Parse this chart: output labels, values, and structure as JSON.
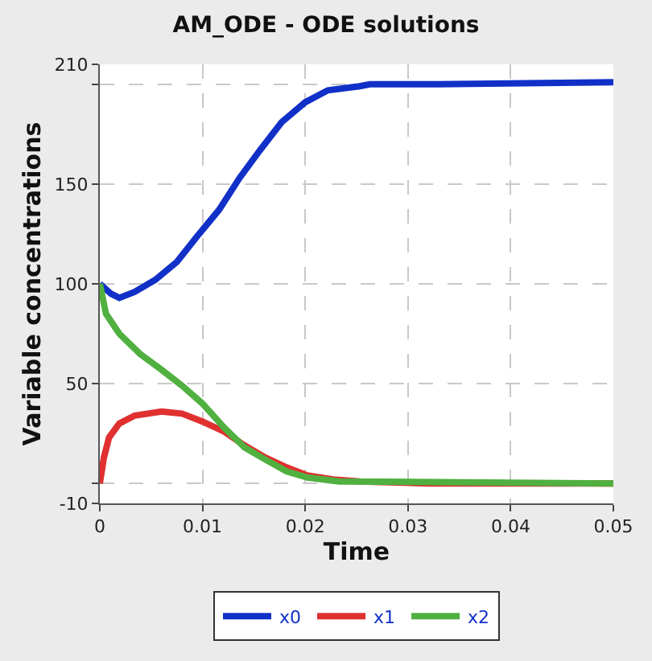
{
  "chart_data": {
    "type": "line",
    "title": "AM_ODE - ODE solutions",
    "xlabel": "Time",
    "ylabel": "Variable concentrations",
    "xlim": [
      0,
      0.05
    ],
    "xticks": [
      0,
      0.01,
      0.02,
      0.03,
      0.04,
      0.05
    ],
    "ylim": [
      -10,
      210
    ],
    "yticks": [
      -10,
      {
        "value": 0,
        "label": null
      },
      50,
      100,
      150,
      {
        "value": 200,
        "label": null
      },
      210
    ],
    "grid": true,
    "legend": "bottom",
    "marker": "none",
    "line_style": "solid",
    "series": [
      {
        "name": "x0",
        "color": "#1030c8",
        "x": [
          0,
          0.0011,
          0.0019,
          0.0034,
          0.0054,
          0.0075,
          0.0095,
          0.0116,
          0.0136,
          0.0156,
          0.0177,
          0.02,
          0.0222,
          0.0253,
          0.0263,
          0.0329,
          0.05
        ],
        "values": [
          100,
          95,
          93,
          96,
          102,
          111,
          124,
          137,
          153,
          167,
          181,
          191,
          197,
          199,
          200,
          200,
          201
        ]
      },
      {
        "name": "x1",
        "color": "#e03030",
        "x": [
          0,
          0.0004,
          0.0009,
          0.0019,
          0.0034,
          0.006,
          0.008,
          0.01,
          0.0121,
          0.0141,
          0.0161,
          0.0182,
          0.0202,
          0.0227,
          0.0253,
          0.0319,
          0.05
        ],
        "values": [
          0,
          13,
          23,
          30,
          34,
          36,
          35,
          31,
          26,
          19,
          13,
          8,
          4,
          2,
          1,
          0,
          0
        ]
      },
      {
        "name": "x2",
        "color": "#50b040",
        "x": [
          0,
          0.0006,
          0.0019,
          0.0039,
          0.006,
          0.008,
          0.01,
          0.0121,
          0.0141,
          0.0161,
          0.0182,
          0.0202,
          0.0233,
          0.05
        ],
        "values": [
          100,
          85,
          75,
          65,
          57,
          49,
          40,
          28,
          18,
          12,
          6,
          3,
          1,
          0
        ]
      }
    ]
  }
}
